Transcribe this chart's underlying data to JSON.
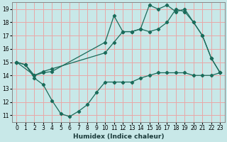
{
  "xlabel": "Humidex (Indice chaleur)",
  "bg_color": "#c8e8e8",
  "grid_color": "#e8a8a8",
  "line_color": "#1a6b5a",
  "xlim": [
    -0.5,
    23.5
  ],
  "ylim": [
    10.5,
    19.5
  ],
  "xticks": [
    0,
    1,
    2,
    3,
    4,
    5,
    6,
    7,
    8,
    9,
    10,
    11,
    12,
    13,
    14,
    15,
    16,
    17,
    18,
    19,
    20,
    21,
    22,
    23
  ],
  "yticks": [
    11,
    12,
    13,
    14,
    15,
    16,
    17,
    18,
    19
  ],
  "line1_x": [
    0,
    1,
    2,
    3,
    4,
    5,
    6,
    7,
    8,
    9,
    10,
    11,
    12,
    13,
    14,
    15,
    16,
    17,
    18,
    19,
    20,
    21,
    22,
    23
  ],
  "line1_y": [
    15.0,
    14.8,
    13.8,
    13.3,
    12.1,
    11.1,
    10.9,
    11.3,
    11.8,
    12.7,
    13.5,
    13.5,
    13.5,
    13.5,
    13.8,
    14.0,
    14.2,
    14.2,
    14.2,
    14.2,
    14.0,
    14.0,
    14.0,
    14.2
  ],
  "line2_x": [
    0,
    1,
    2,
    3,
    4,
    10,
    11,
    12,
    13,
    14,
    15,
    16,
    17,
    18,
    19,
    20,
    21,
    22,
    23
  ],
  "line2_y": [
    15.0,
    14.8,
    14.0,
    14.2,
    14.3,
    16.5,
    18.5,
    17.3,
    17.3,
    17.5,
    19.3,
    19.0,
    19.3,
    18.8,
    19.0,
    18.0,
    17.0,
    15.3,
    14.2
  ],
  "line3_x": [
    0,
    2,
    3,
    4,
    10,
    11,
    12,
    13,
    14,
    15,
    16,
    17,
    18,
    19,
    20,
    21,
    22,
    23
  ],
  "line3_y": [
    15.0,
    14.0,
    14.3,
    14.5,
    15.7,
    16.5,
    17.3,
    17.3,
    17.5,
    17.3,
    17.5,
    18.0,
    19.0,
    18.8,
    18.0,
    17.0,
    15.3,
    14.2
  ]
}
